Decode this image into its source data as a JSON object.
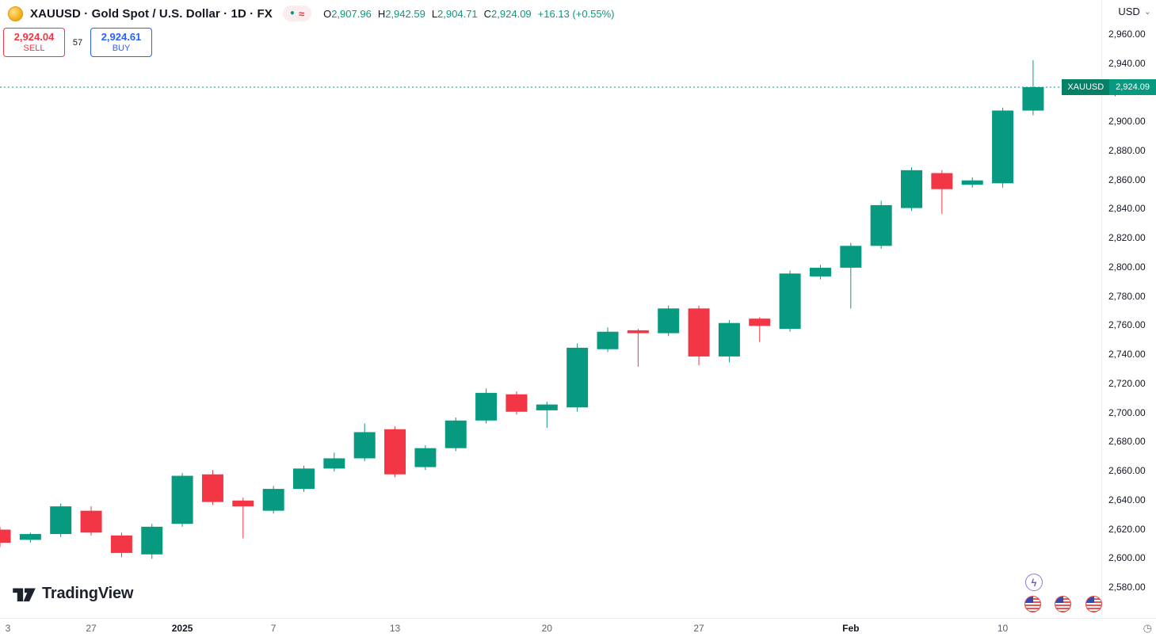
{
  "header": {
    "symbol_title": "XAUUSD · Gold Spot / U.S. Dollar · 1D · FX",
    "currency": "USD",
    "ohlc": {
      "o_label": "O",
      "o": "2,907.96",
      "h_label": "H",
      "h": "2,942.59",
      "l_label": "L",
      "l": "2,904.71",
      "c_label": "C",
      "c": "2,924.09",
      "change": "+16.13 (+0.55%)"
    }
  },
  "icons": {
    "market_open_dot": "●",
    "delayed_approx": "≈",
    "caret_down": "⌄",
    "lightning": "ϟ",
    "clock": "◷"
  },
  "trade_panel": {
    "sell_price": "2,924.04",
    "sell_label": "SELL",
    "spread": "57",
    "buy_price": "2,924.61",
    "buy_label": "BUY"
  },
  "price_tag": {
    "symbol": "XAUUSD",
    "price": "2,924.09"
  },
  "footer": {
    "logo_text": "TradingView"
  },
  "colors": {
    "up": "#089981",
    "down": "#f23645",
    "sell": "#f23645",
    "buy": "#2962ff",
    "text": "#131722",
    "muted": "#787b86"
  },
  "chart_data": {
    "type": "candlestick",
    "symbol": "XAUUSD",
    "timeframe": "1D",
    "title": "Gold Spot / U.S. Dollar",
    "ylim": [
      2580,
      2960
    ],
    "grid": false,
    "last_price": 2924.09,
    "y_ticks": [
      2960,
      2940,
      2920,
      2900,
      2880,
      2860,
      2840,
      2820,
      2800,
      2780,
      2760,
      2740,
      2720,
      2700,
      2680,
      2660,
      2640,
      2620,
      2600,
      2580
    ],
    "x_ticks": [
      {
        "index": 0,
        "label": "3",
        "bold": false
      },
      {
        "index": 3,
        "label": "27",
        "bold": false
      },
      {
        "index": 6,
        "label": "2025",
        "bold": true
      },
      {
        "index": 9,
        "label": "7",
        "bold": false
      },
      {
        "index": 13,
        "label": "13",
        "bold": false
      },
      {
        "index": 18,
        "label": "20",
        "bold": false
      },
      {
        "index": 23,
        "label": "27",
        "bold": false
      },
      {
        "index": 28,
        "label": "Feb",
        "bold": true
      },
      {
        "index": 33,
        "label": "10",
        "bold": false
      }
    ],
    "candles_format": [
      "open",
      "high",
      "low",
      "close"
    ],
    "candles": [
      [
        2620,
        2622,
        2608,
        2611
      ],
      [
        2613,
        2618,
        2611,
        2617
      ],
      [
        2617,
        2638,
        2615,
        2636
      ],
      [
        2633,
        2636,
        2616,
        2618
      ],
      [
        2616,
        2618,
        2601,
        2604
      ],
      [
        2603,
        2624,
        2600,
        2622
      ],
      [
        2624,
        2659,
        2622,
        2657
      ],
      [
        2658,
        2661,
        2637,
        2639
      ],
      [
        2640,
        2642,
        2614,
        2636
      ],
      [
        2633,
        2650,
        2631,
        2648
      ],
      [
        2648,
        2664,
        2646,
        2662
      ],
      [
        2662,
        2673,
        2660,
        2669
      ],
      [
        2669,
        2693,
        2667,
        2687
      ],
      [
        2689,
        2691,
        2656,
        2658
      ],
      [
        2663,
        2678,
        2661,
        2676
      ],
      [
        2676,
        2697,
        2674,
        2695
      ],
      [
        2695,
        2717,
        2693,
        2714
      ],
      [
        2713,
        2715,
        2699,
        2701
      ],
      [
        2702,
        2708,
        2690,
        2706
      ],
      [
        2704,
        2748,
        2701,
        2745
      ],
      [
        2744,
        2759,
        2742,
        2756
      ],
      [
        2757,
        2758,
        2732,
        2755
      ],
      [
        2755,
        2774,
        2753,
        2772
      ],
      [
        2772,
        2774,
        2733,
        2739
      ],
      [
        2739,
        2764,
        2735,
        2762
      ],
      [
        2765,
        2766,
        2749,
        2760
      ],
      [
        2758,
        2798,
        2756,
        2796
      ],
      [
        2794,
        2802,
        2792,
        2800
      ],
      [
        2800,
        2817,
        2772,
        2815
      ],
      [
        2815,
        2846,
        2813,
        2843
      ],
      [
        2841,
        2869,
        2839,
        2867
      ],
      [
        2865,
        2867,
        2837,
        2854
      ],
      [
        2857,
        2862,
        2855,
        2860
      ],
      [
        2858,
        2910,
        2855,
        2908
      ],
      [
        2907.96,
        2942.59,
        2904.71,
        2924.09
      ]
    ]
  }
}
